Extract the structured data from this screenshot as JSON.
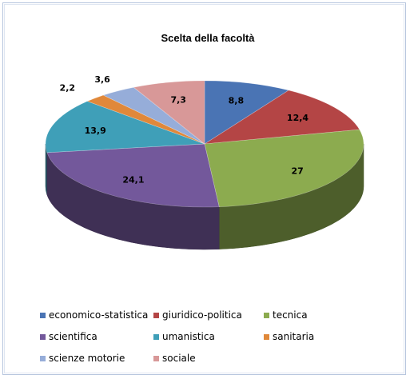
{
  "chart_data": {
    "type": "pie",
    "title": "Scelta della facoltà",
    "three_d": true,
    "legend_position": "bottom",
    "categories": [
      "economico-statistica",
      "giuridico-politica",
      "tecnica",
      "scientifica",
      "umanistica",
      "sanitaria",
      "scienze motorie",
      "sociale"
    ],
    "values": [
      8.8,
      12.4,
      27,
      24.1,
      13.9,
      2.2,
      3.6,
      7.3
    ],
    "labels": [
      "8,8",
      "12,4",
      "27",
      "24,1",
      "13,9",
      "2,2",
      "3,6",
      "7,3"
    ],
    "colors": [
      "#4a74b4",
      "#b44545",
      "#8cab4f",
      "#73589b",
      "#3f9fb8",
      "#e0883a",
      "#96add9",
      "#d89898"
    ]
  }
}
